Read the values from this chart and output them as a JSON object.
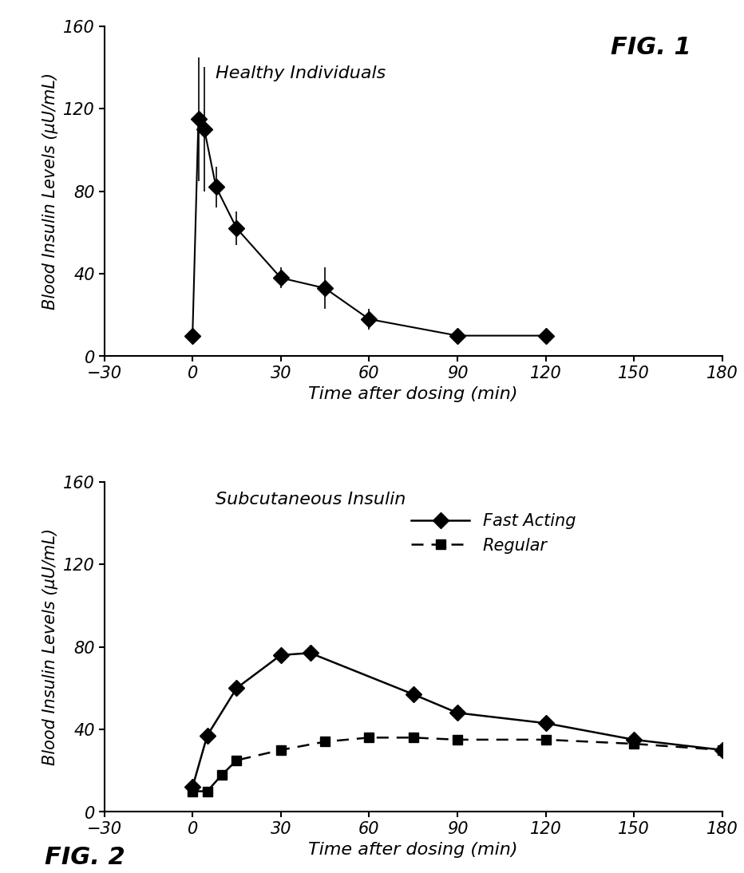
{
  "fig1": {
    "title": "Healthy Individuals",
    "fig_label": "FIG. 1",
    "x": [
      0,
      2,
      4,
      8,
      15,
      30,
      45,
      60,
      90,
      120
    ],
    "y": [
      10,
      115,
      110,
      82,
      62,
      38,
      33,
      18,
      10,
      10
    ],
    "yerr": [
      0,
      30,
      30,
      10,
      8,
      5,
      10,
      5,
      2,
      2
    ],
    "xlabel": "Time after dosing (min)",
    "ylabel": "Blood Insulin Levels (μU/mL)",
    "xlim": [
      -30,
      180
    ],
    "ylim": [
      0,
      160
    ],
    "xticks": [
      -30,
      0,
      30,
      60,
      90,
      120,
      150,
      180
    ],
    "yticks": [
      0,
      40,
      80,
      120,
      160
    ]
  },
  "fig2": {
    "title": "Subcutaneous Insulin",
    "fig_label": "FIG. 2",
    "fast_acting": {
      "x": [
        0,
        5,
        15,
        30,
        40,
        75,
        90,
        120,
        150,
        180
      ],
      "y": [
        12,
        37,
        60,
        76,
        77,
        57,
        48,
        43,
        35,
        30
      ],
      "label": "Fast Acting"
    },
    "regular": {
      "x": [
        0,
        5,
        10,
        15,
        30,
        45,
        60,
        75,
        90,
        120,
        150,
        180
      ],
      "y": [
        10,
        10,
        18,
        25,
        30,
        34,
        36,
        36,
        35,
        35,
        33,
        30
      ],
      "label": "Regular"
    },
    "xlabel": "Time after dosing (min)",
    "ylabel": "Blood Insulin Levels (μU/mL)",
    "xlim": [
      -30,
      180
    ],
    "ylim": [
      0,
      160
    ],
    "xticks": [
      -30,
      0,
      30,
      60,
      90,
      120,
      150,
      180
    ],
    "yticks": [
      0,
      40,
      80,
      120,
      160
    ]
  },
  "background_color": "#ffffff",
  "line_color": "#000000",
  "marker_size": 10,
  "font_size_label": 16,
  "font_size_tick": 15,
  "font_size_annot": 16,
  "font_size_figlabel": 22
}
